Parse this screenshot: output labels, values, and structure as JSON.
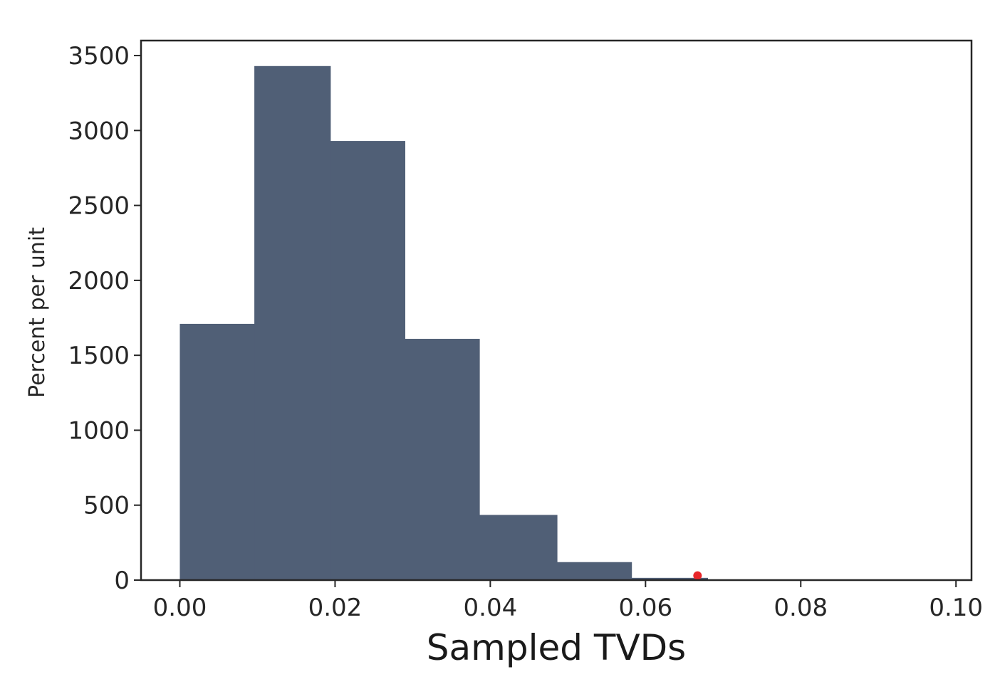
{
  "chart_data": {
    "type": "bar",
    "xlabel": "Sampled TVDs",
    "ylabel": "Percent per unit",
    "xlim": [
      -0.005,
      0.102
    ],
    "ylim": [
      0,
      3600
    ],
    "xticks": [
      "0.00",
      "0.02",
      "0.04",
      "0.06",
      "0.08",
      "0.10"
    ],
    "yticks": [
      "0",
      "500",
      "1000",
      "1500",
      "2000",
      "2500",
      "3000",
      "3500"
    ],
    "bins": [
      {
        "start": 0.0,
        "end": 0.0096,
        "value": 1710
      },
      {
        "start": 0.0096,
        "end": 0.0194,
        "value": 3430
      },
      {
        "start": 0.0194,
        "end": 0.029,
        "value": 2930
      },
      {
        "start": 0.029,
        "end": 0.0386,
        "value": 1610
      },
      {
        "start": 0.0386,
        "end": 0.0486,
        "value": 435
      },
      {
        "start": 0.0486,
        "end": 0.0582,
        "value": 120
      },
      {
        "start": 0.0582,
        "end": 0.068,
        "value": 15
      }
    ],
    "bar_color": "#505f76",
    "marker": {
      "x": 0.0667,
      "y": 30,
      "color": "#e8262a"
    },
    "grid": false,
    "legend": "none"
  }
}
